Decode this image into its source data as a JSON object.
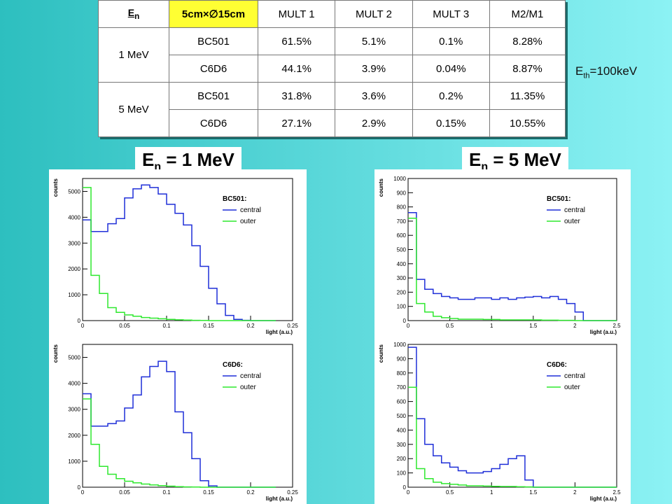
{
  "table": {
    "header": [
      "En",
      "5cm×∅15cm",
      "MULT 1",
      "MULT 2",
      "MULT 3",
      "M2/M1"
    ],
    "groups": [
      {
        "energy": "1 MeV",
        "rows": [
          [
            "BC501",
            "61.5%",
            "5.1%",
            "0.1%",
            "8.28%"
          ],
          [
            "C6D6",
            "44.1%",
            "3.9%",
            "0.04%",
            "8.87%"
          ]
        ]
      },
      {
        "energy": "5 MeV",
        "rows": [
          [
            "BC501",
            "31.8%",
            "3.6%",
            "0.2%",
            "11.35%"
          ],
          [
            "C6D6",
            "27.1%",
            "2.9%",
            "0.15%",
            "10.55%"
          ]
        ]
      }
    ]
  },
  "eth_label": {
    "main": "E",
    "sub": "th",
    "rest": "=100keV"
  },
  "headers": {
    "left": {
      "main": "E",
      "sub": "n",
      "rest": " = 1 MeV"
    },
    "right": {
      "main": "E",
      "sub": "n",
      "rest": " = 5 MeV"
    }
  },
  "colors": {
    "central": "#1f2fd8",
    "outer": "#2ee82e",
    "table_highlight": "#ffff33"
  },
  "chart_data": [
    {
      "type": "line",
      "id": "bc501-1mev",
      "legend_title": "BC501:",
      "xlabel": "light (a.u.)",
      "ylabel": "counts",
      "xlim": [
        0,
        0.25
      ],
      "ylim": [
        0,
        5500
      ],
      "xticks": [
        0,
        0.05,
        0.1,
        0.15,
        0.2,
        0.25
      ],
      "xticklabels": [
        "0",
        "0.05",
        "0.1",
        "0.15",
        "0.2",
        "0.25"
      ],
      "yticks": [
        0,
        1000,
        2000,
        3000,
        4000,
        5000
      ],
      "bin_width": 0.01,
      "x_start": 0,
      "series": [
        {
          "name": "central",
          "values": [
            3900,
            3450,
            3450,
            3750,
            3950,
            4750,
            5100,
            5250,
            5150,
            4900,
            4500,
            4150,
            3700,
            2900,
            2100,
            1250,
            650,
            200,
            50,
            10,
            0,
            0,
            0
          ]
        },
        {
          "name": "outer",
          "values": [
            5150,
            1750,
            1050,
            500,
            320,
            220,
            170,
            120,
            95,
            70,
            50,
            30,
            20,
            10,
            5,
            0,
            0,
            0,
            0,
            0,
            0,
            0,
            0
          ]
        }
      ]
    },
    {
      "type": "line",
      "id": "c6d6-1mev",
      "legend_title": "C6D6:",
      "xlabel": "light (a.u.)",
      "ylabel": "counts",
      "xlim": [
        0,
        0.25
      ],
      "ylim": [
        0,
        5500
      ],
      "xticks": [
        0,
        0.05,
        0.1,
        0.15,
        0.2,
        0.25
      ],
      "xticklabels": [
        "0",
        "0.05",
        "0.1",
        "0.15",
        "0.2",
        "0.25"
      ],
      "yticks": [
        0,
        1000,
        2000,
        3000,
        4000,
        5000
      ],
      "bin_width": 0.01,
      "x_start": 0,
      "series": [
        {
          "name": "central",
          "values": [
            3600,
            2350,
            2350,
            2450,
            2550,
            3050,
            3550,
            4250,
            4650,
            4850,
            4450,
            2900,
            2100,
            1100,
            250,
            50,
            0,
            0,
            0,
            0,
            0,
            0,
            0
          ]
        },
        {
          "name": "outer",
          "values": [
            3400,
            1650,
            800,
            500,
            330,
            230,
            170,
            120,
            90,
            60,
            40,
            20,
            10,
            5,
            0,
            0,
            0,
            0,
            0,
            0,
            0,
            0,
            0
          ]
        }
      ]
    },
    {
      "type": "line",
      "id": "bc501-5mev",
      "legend_title": "BC501:",
      "xlabel": "light (a.u.)",
      "ylabel": "counts",
      "xlim": [
        0,
        2.5
      ],
      "ylim": [
        0,
        1000
      ],
      "xticks": [
        0,
        0.5,
        1,
        1.5,
        2,
        2.5
      ],
      "xticklabels": [
        "0",
        "0.5",
        "1",
        "1.5",
        "2",
        "2.5"
      ],
      "yticks": [
        0,
        100,
        200,
        300,
        400,
        500,
        600,
        700,
        800,
        900,
        1000
      ],
      "bin_width": 0.1,
      "x_start": 0,
      "series": [
        {
          "name": "central",
          "values": [
            760,
            290,
            220,
            190,
            170,
            160,
            150,
            150,
            160,
            160,
            150,
            160,
            150,
            160,
            165,
            170,
            160,
            170,
            150,
            120,
            60,
            0,
            0,
            0,
            0
          ]
        },
        {
          "name": "outer",
          "values": [
            720,
            120,
            60,
            30,
            20,
            15,
            10,
            10,
            10,
            8,
            8,
            5,
            5,
            5,
            5,
            5,
            3,
            3,
            2,
            2,
            0,
            0,
            0,
            0,
            0
          ]
        }
      ]
    },
    {
      "type": "line",
      "id": "c6d6-5mev",
      "legend_title": "C6D6:",
      "xlabel": "light (a.u.)",
      "ylabel": "counts",
      "xlim": [
        0,
        2.5
      ],
      "ylim": [
        0,
        1000
      ],
      "xticks": [
        0,
        0.5,
        1,
        1.5,
        2,
        2.5
      ],
      "xticklabels": [
        "0",
        "0.5",
        "1",
        "1.5",
        "2",
        "2.5"
      ],
      "yticks": [
        0,
        100,
        200,
        300,
        400,
        500,
        600,
        700,
        800,
        900,
        1000
      ],
      "bin_width": 0.1,
      "x_start": 0,
      "series": [
        {
          "name": "central",
          "values": [
            980,
            480,
            300,
            220,
            170,
            140,
            115,
            100,
            100,
            110,
            130,
            160,
            200,
            220,
            50,
            0,
            0,
            0,
            0,
            0,
            0,
            0,
            0,
            0,
            0
          ]
        },
        {
          "name": "outer",
          "values": [
            700,
            130,
            60,
            35,
            25,
            20,
            15,
            10,
            10,
            8,
            6,
            5,
            5,
            3,
            2,
            0,
            0,
            0,
            0,
            0,
            0,
            0,
            0,
            0,
            0
          ]
        }
      ]
    }
  ]
}
